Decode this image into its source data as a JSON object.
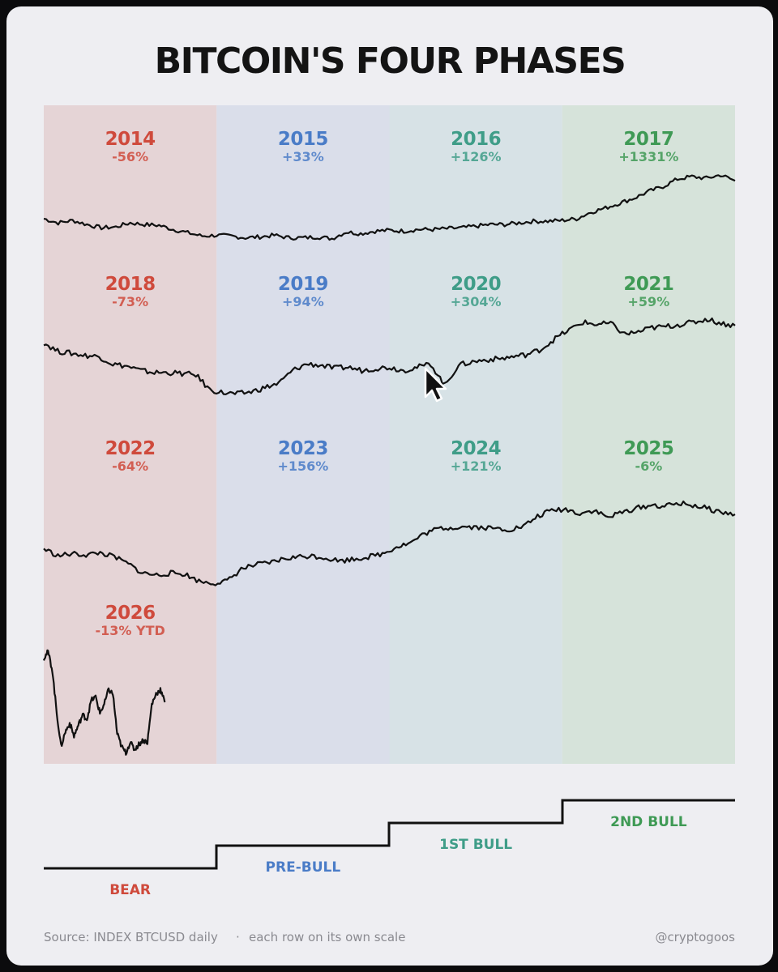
{
  "title": "BITCOIN'S FOUR PHASES",
  "colors": {
    "bear": "#cf4a3c",
    "pre_bull": "#4a7cc7",
    "first_bull": "#3f9d88",
    "second_bull": "#3f9a55",
    "line": "#111111"
  },
  "chart_data": {
    "type": "line",
    "columns": [
      "BEAR",
      "PRE-BULL",
      "1ST BULL",
      "2ND BULL"
    ],
    "rows": [
      {
        "years": [
          {
            "year": "2014",
            "change": "-56%"
          },
          {
            "year": "2015",
            "change": "+33%"
          },
          {
            "year": "2016",
            "change": "+126%"
          },
          {
            "year": "2017",
            "change": "+1331%"
          }
        ],
        "series": [
          0.47,
          0.42,
          0.45,
          0.4,
          0.36,
          0.37,
          0.42,
          0.4,
          0.39,
          0.34,
          0.3,
          0.26,
          0.27,
          0.26,
          0.24,
          0.25,
          0.27,
          0.24,
          0.24,
          0.25,
          0.23,
          0.31,
          0.29,
          0.32,
          0.33,
          0.32,
          0.34,
          0.34,
          0.35,
          0.36,
          0.38,
          0.4,
          0.4,
          0.42,
          0.44,
          0.44,
          0.45,
          0.47,
          0.55,
          0.6,
          0.66,
          0.72,
          0.8,
          0.86,
          0.95,
          0.98,
          0.96,
          1.0,
          0.93
        ]
      },
      {
        "years": [
          {
            "year": "2018",
            "change": "-73%"
          },
          {
            "year": "2019",
            "change": "+94%"
          },
          {
            "year": "2020",
            "change": "+304%"
          },
          {
            "year": "2021",
            "change": "+59%"
          }
        ],
        "series": [
          0.78,
          0.7,
          0.68,
          0.66,
          0.65,
          0.58,
          0.56,
          0.52,
          0.5,
          0.5,
          0.49,
          0.48,
          0.34,
          0.31,
          0.3,
          0.32,
          0.36,
          0.4,
          0.52,
          0.58,
          0.57,
          0.54,
          0.55,
          0.52,
          0.54,
          0.55,
          0.52,
          0.55,
          0.58,
          0.38,
          0.57,
          0.6,
          0.62,
          0.63,
          0.65,
          0.67,
          0.72,
          0.82,
          0.9,
          0.97,
          0.95,
          0.96,
          0.86,
          0.88,
          0.92,
          0.93,
          0.95,
          0.97,
          1.0,
          0.96,
          0.94
        ]
      },
      {
        "years": [
          {
            "year": "2022",
            "change": "-64%"
          },
          {
            "year": "2023",
            "change": "+156%"
          },
          {
            "year": "2024",
            "change": "+121%"
          },
          {
            "year": "2025",
            "change": "-6%"
          }
        ],
        "series": [
          0.42,
          0.35,
          0.37,
          0.36,
          0.38,
          0.34,
          0.27,
          0.18,
          0.16,
          0.18,
          0.17,
          0.1,
          0.08,
          0.1,
          0.22,
          0.26,
          0.28,
          0.32,
          0.34,
          0.35,
          0.33,
          0.3,
          0.32,
          0.34,
          0.37,
          0.44,
          0.48,
          0.57,
          0.62,
          0.63,
          0.64,
          0.63,
          0.62,
          0.61,
          0.64,
          0.74,
          0.8,
          0.81,
          0.77,
          0.8,
          0.73,
          0.78,
          0.82,
          0.85,
          0.84,
          0.87,
          0.85,
          0.82,
          0.78,
          0.76
        ]
      },
      {
        "years": [
          {
            "year": "2026",
            "change": "-13% YTD"
          }
        ],
        "series": [
          0.92,
          0.98,
          0.8,
          0.4,
          0.08,
          0.22,
          0.3,
          0.18,
          0.28,
          0.38,
          0.34,
          0.52,
          0.55,
          0.4,
          0.48,
          0.62,
          0.58,
          0.2,
          0.08,
          0.02,
          0.12,
          0.05,
          0.1,
          0.14,
          0.12,
          0.48,
          0.58,
          0.62,
          0.5
        ]
      }
    ]
  },
  "phases": [
    {
      "label": "BEAR"
    },
    {
      "label": "PRE-BULL"
    },
    {
      "label": "1ST BULL"
    },
    {
      "label": "2ND BULL"
    }
  ],
  "footer": {
    "source": "Source: INDEX BTCUSD daily",
    "separator": "·",
    "note": "each row on its own scale",
    "handle": "@cryptogoos"
  }
}
